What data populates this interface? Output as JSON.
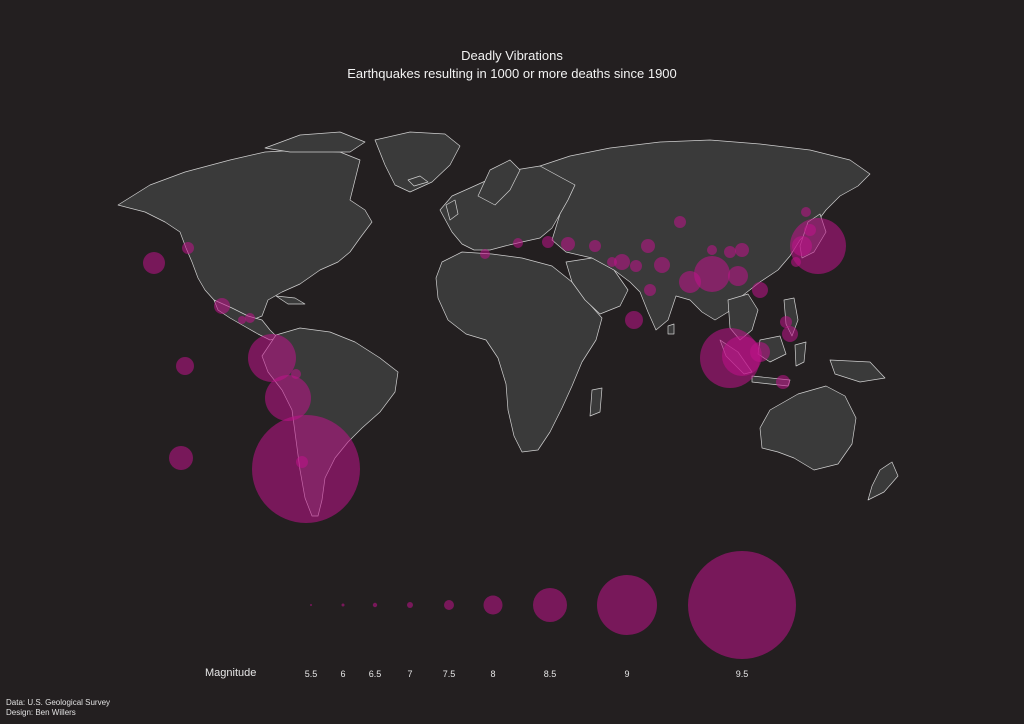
{
  "title": "Deadly Vibrations",
  "subtitle": "Earthquakes resulting in 1000 or more deaths since 1900",
  "legend": {
    "title": "Magnitude",
    "magnitudes": [
      "5.5",
      "6",
      "6.5",
      "7",
      "7.5",
      "8",
      "8.5",
      "9",
      "9.5"
    ]
  },
  "credits": {
    "data": "Data: U.S. Geological Survey",
    "design": "Design: Ben Willers"
  },
  "colors": {
    "background": "#231f20",
    "land": "#3a3a3a",
    "border": "#d0d0d0",
    "quake": "#c0138a"
  }
}
